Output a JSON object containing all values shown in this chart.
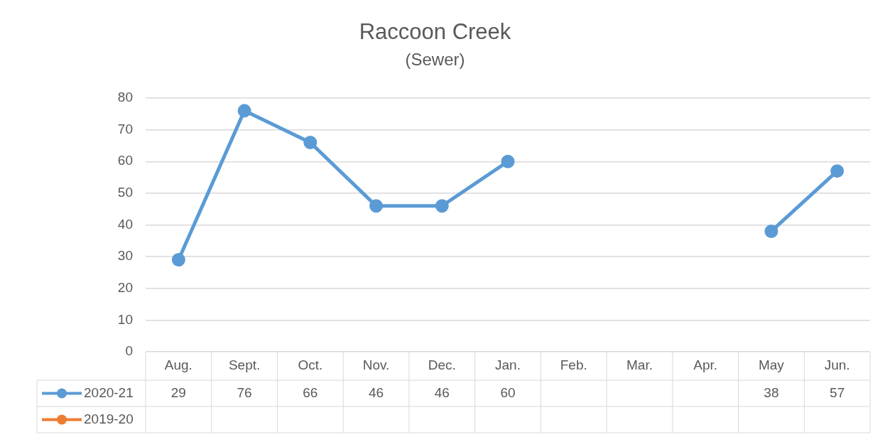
{
  "chart_data": {
    "type": "line",
    "title": "Raccoon Creek",
    "subtitle": "(Sewer)",
    "categories": [
      "Aug.",
      "Sept.",
      "Oct.",
      "Nov.",
      "Dec.",
      "Jan.",
      "Feb.",
      "Mar.",
      "Apr.",
      "May",
      "Jun."
    ],
    "series": [
      {
        "name": "2020-21",
        "color": "#5b9bd5",
        "values": [
          29,
          76,
          66,
          46,
          46,
          60,
          null,
          null,
          null,
          38,
          57
        ]
      },
      {
        "name": "2019-20",
        "color": "#ed7d31",
        "values": [
          null,
          null,
          null,
          null,
          null,
          null,
          null,
          null,
          null,
          null,
          null
        ]
      }
    ],
    "ylim": [
      0,
      80
    ],
    "yticks": [
      0,
      10,
      20,
      30,
      40,
      50,
      60,
      70,
      80
    ],
    "grid": "y",
    "legend": "bottom",
    "data_labels": true,
    "marker": "circle",
    "line_style": "solid"
  }
}
